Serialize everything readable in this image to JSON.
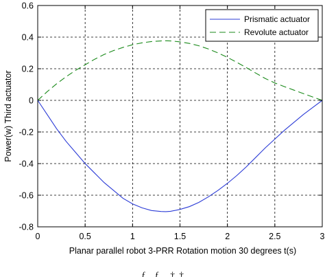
{
  "chart_data": {
    "type": "line",
    "title": "",
    "xlabel": "Planar parallel robot 3-PRR  Rotation motion 30 degrees  t(s)",
    "ylabel": "Power(w)  Third actuator",
    "xlim": [
      0,
      3
    ],
    "ylim": [
      -0.8,
      0.6
    ],
    "xticks": [
      0,
      0.5,
      1,
      1.5,
      2,
      2.5,
      3
    ],
    "xtick_labels": [
      "0",
      "0.5",
      "1",
      "1.5",
      "2",
      "2.5",
      "3"
    ],
    "yticks": [
      -0.8,
      -0.6,
      -0.4,
      -0.2,
      0,
      0.2,
      0.4,
      0.6
    ],
    "ytick_labels": [
      "-0.8",
      "-0.6",
      "-0.4",
      "-0.2",
      "0",
      "0.2",
      "0.4",
      "0.6"
    ],
    "grid": true,
    "legend_position": "top-right",
    "x": [
      0,
      0.1,
      0.2,
      0.3,
      0.4,
      0.5,
      0.6,
      0.7,
      0.8,
      0.9,
      1.0,
      1.1,
      1.2,
      1.3,
      1.35,
      1.4,
      1.5,
      1.6,
      1.7,
      1.8,
      1.9,
      2.0,
      2.1,
      2.2,
      2.3,
      2.4,
      2.5,
      2.6,
      2.7,
      2.8,
      2.9,
      3.0
    ],
    "series": [
      {
        "name": "Prismatic actuator",
        "color": "#2b3bd6",
        "dash": "solid",
        "values": [
          0,
          -0.09,
          -0.18,
          -0.26,
          -0.33,
          -0.4,
          -0.46,
          -0.52,
          -0.57,
          -0.62,
          -0.655,
          -0.68,
          -0.697,
          -0.703,
          -0.704,
          -0.702,
          -0.69,
          -0.672,
          -0.645,
          -0.61,
          -0.57,
          -0.525,
          -0.475,
          -0.42,
          -0.36,
          -0.3,
          -0.245,
          -0.19,
          -0.14,
          -0.09,
          -0.045,
          0
        ]
      },
      {
        "name": "Revolute actuator",
        "color": "#1a8a1a",
        "dash": "dashed",
        "values": [
          0,
          0.055,
          0.105,
          0.15,
          0.19,
          0.225,
          0.26,
          0.29,
          0.315,
          0.335,
          0.352,
          0.364,
          0.372,
          0.376,
          0.377,
          0.376,
          0.37,
          0.36,
          0.345,
          0.325,
          0.3,
          0.272,
          0.24,
          0.207,
          0.172,
          0.138,
          0.11,
          0.087,
          0.065,
          0.043,
          0.021,
          0
        ]
      }
    ]
  },
  "footer_text": "figure caption (cut off)"
}
